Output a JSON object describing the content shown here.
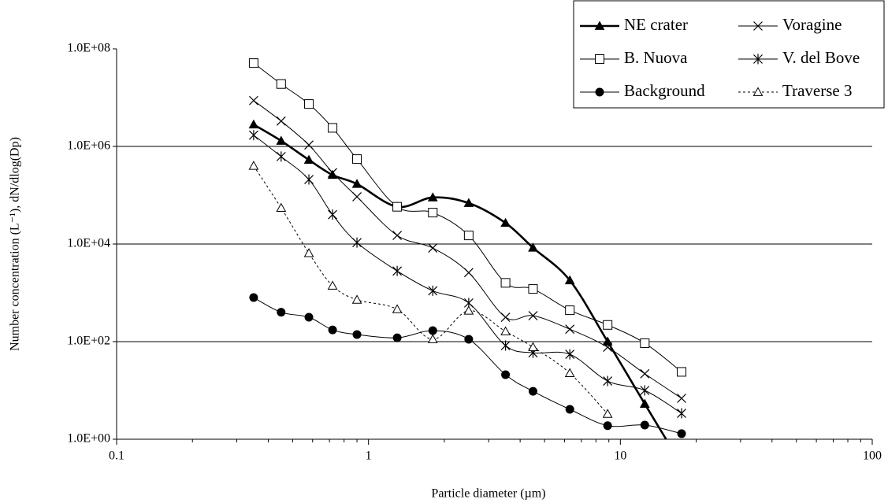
{
  "chart_data": {
    "type": "line",
    "xlabel": "Particle diameter (µm)",
    "ylabel": "Number concentration (L⁻¹), dN/dlog(Dp)",
    "x": [
      0.35,
      0.45,
      0.58,
      0.72,
      0.9,
      1.3,
      1.8,
      2.5,
      3.5,
      4.5,
      6.3,
      8.9,
      12.5,
      17.5
    ],
    "xlog": true,
    "ylog": true,
    "xlim": [
      0.1,
      100
    ],
    "ylim": [
      1,
      100000000
    ],
    "xticks": [
      0.1,
      1,
      10,
      100
    ],
    "yticks": [
      {
        "value": 1,
        "label": "1.0E+00"
      },
      {
        "value": 100,
        "label": "1.0E+02"
      },
      {
        "value": 10000,
        "label": "1.0E+04"
      },
      {
        "value": 1000000,
        "label": "1.0E+06"
      },
      {
        "value": 100000000,
        "label": "1.0E+08"
      }
    ],
    "grid": true,
    "legend": "top-right",
    "series": [
      {
        "name": "NE crater",
        "color": "#000000",
        "marker": "filled-triangle",
        "line_width": 2.6,
        "dashed": false,
        "values": [
          2800000,
          1300000,
          530000,
          260000,
          170000,
          58000,
          90000,
          69000,
          27000,
          8400,
          1800,
          100,
          5.3,
          0.3
        ]
      },
      {
        "name": "Voragine",
        "color": "#000000",
        "marker": "cross",
        "line_width": 1,
        "dashed": false,
        "values": [
          8700000,
          3300000,
          1070000,
          290000,
          93000,
          15000,
          8300,
          2600,
          316,
          340,
          180,
          77,
          22,
          6.9
        ]
      },
      {
        "name": "B. Nuova",
        "color": "#000000",
        "marker": "open-square",
        "line_width": 1,
        "dashed": false,
        "values": [
          51000000,
          19000000,
          7400000,
          2400000,
          550000,
          58000,
          44000,
          15000,
          1600,
          1200,
          440,
          220,
          93,
          24
        ]
      },
      {
        "name": "V. del Bove",
        "color": "#000000",
        "marker": "asterisk",
        "line_width": 1,
        "dashed": false,
        "values": [
          1700000,
          620000,
          210000,
          40000,
          10700,
          2800,
          1100,
          620,
          83,
          59,
          55,
          15.6,
          10,
          3.4
        ]
      },
      {
        "name": "Background",
        "color": "#000000",
        "marker": "filled-circle",
        "line_width": 1,
        "dashed": false,
        "values": [
          800,
          400,
          316,
          174,
          140,
          120,
          168,
          112,
          21,
          9.6,
          4.1,
          1.9,
          1.95,
          1.3
        ]
      },
      {
        "name": "Traverse 3",
        "color": "#000000",
        "marker": "open-triangle",
        "line_width": 1,
        "dashed": true,
        "values": [
          400000,
          55000,
          6500,
          1400,
          720,
          460,
          112,
          430,
          162,
          77,
          22.6,
          3.3,
          null,
          null
        ]
      }
    ]
  }
}
